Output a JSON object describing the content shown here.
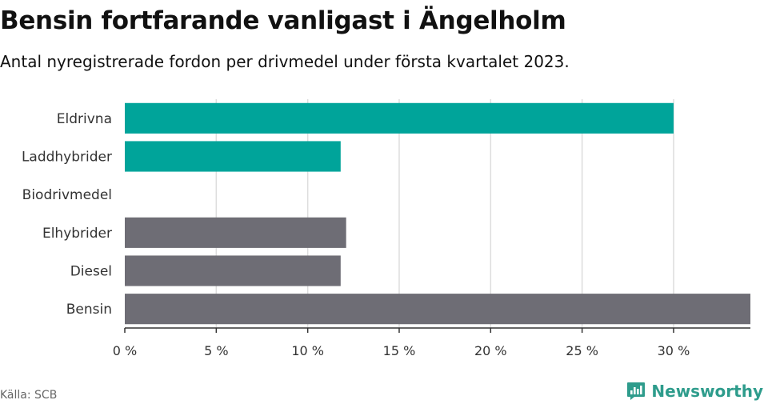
{
  "header": {
    "title": "Bensin fortfarande vanligast i Ängelholm",
    "subtitle": "Antal nyregistrerade fordon per drivmedel under första kvartalet 2023."
  },
  "footer": {
    "source": "Källa: SCB",
    "brand": "Newsworthy",
    "brand_icon": "newsworthy-logo-icon"
  },
  "colors": {
    "electric": "#00a49a",
    "other": "#6e6d75",
    "grid": "#dddddd",
    "axis": "#333333",
    "brand": "#2e9c8c"
  },
  "chart_data": {
    "type": "bar",
    "orientation": "horizontal",
    "title": "Bensin fortfarande vanligast i Ängelholm",
    "subtitle": "Antal nyregistrerade fordon per drivmedel under första kvartalet 2023.",
    "categories": [
      "Eldrivna",
      "Laddhybrider",
      "Biodrivmedel",
      "Elhybrider",
      "Diesel",
      "Bensin"
    ],
    "values": [
      30.0,
      11.8,
      0.0,
      12.1,
      11.8,
      34.2
    ],
    "bar_groups": [
      "electric",
      "electric",
      "electric",
      "other",
      "other",
      "other"
    ],
    "unit": "%",
    "xlim": [
      0,
      34.2
    ],
    "xticks": [
      0,
      5,
      10,
      15,
      20,
      25,
      30
    ],
    "xtick_labels": [
      "0 %",
      "5 %",
      "10 %",
      "15 %",
      "20 %",
      "25 %",
      "30 %"
    ],
    "xlabel": "",
    "ylabel": "",
    "grid": true,
    "legend": "none"
  }
}
